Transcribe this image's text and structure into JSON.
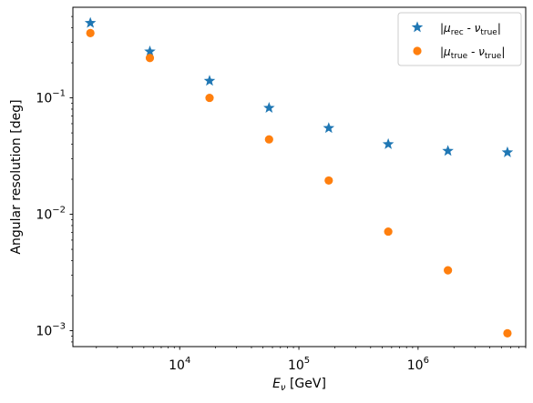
{
  "chart_data": {
    "type": "scatter",
    "title": "",
    "xlabel": {
      "main": "E",
      "sub": "ν",
      "rest": " [GeV]"
    },
    "ylabel": "Angular resolution [deg]",
    "xscale": "log",
    "yscale": "log",
    "xlim": [
      1270,
      8000000
    ],
    "ylim": [
      0.00073,
      0.6
    ],
    "x_ticks": [
      {
        "value": 10000,
        "base": "10",
        "exp": "4"
      },
      {
        "value": 100000,
        "base": "10",
        "exp": "5"
      },
      {
        "value": 1000000,
        "base": "10",
        "exp": "6"
      }
    ],
    "y_ticks": [
      {
        "value": 0.001,
        "base": "10",
        "exp": "−3"
      },
      {
        "value": 0.01,
        "base": "10",
        "exp": "−2"
      },
      {
        "value": 0.1,
        "base": "10",
        "exp": "−1"
      }
    ],
    "grid": false,
    "legend_position": "top-right",
    "series": [
      {
        "label_parts": {
          "open": "|μ",
          "sub1": "rec",
          "mid": " - ν",
          "sub2": "true",
          "close": "|"
        },
        "marker": "star",
        "color": "#1f77b4",
        "x": [
          1780,
          5620,
          17800,
          56200,
          178000,
          562000,
          1780000,
          5620000
        ],
        "y": [
          0.44,
          0.25,
          0.14,
          0.082,
          0.055,
          0.04,
          0.035,
          0.034
        ]
      },
      {
        "label_parts": {
          "open": "|μ",
          "sub1": "true",
          "mid": " - ν",
          "sub2": "true",
          "close": "|"
        },
        "marker": "circle",
        "color": "#ff7f0e",
        "x": [
          1780,
          5620,
          17800,
          56200,
          178000,
          562000,
          1780000,
          5620000
        ],
        "y": [
          0.36,
          0.22,
          0.1,
          0.044,
          0.0195,
          0.0071,
          0.0033,
          0.00095
        ]
      }
    ]
  }
}
